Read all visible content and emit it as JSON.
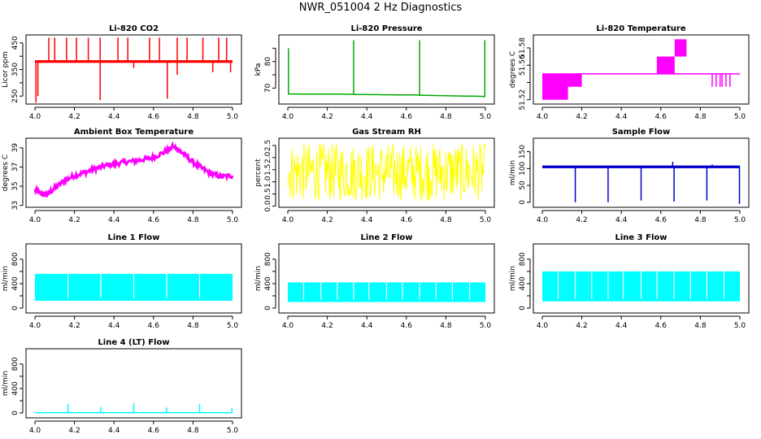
{
  "figure": {
    "title": "NWR_051004  2 Hz Diagnostics"
  },
  "chart_data": [
    {
      "id": "co2",
      "type": "line",
      "title": "Li-820 CO2",
      "ylabel": "Licor ppm",
      "color": "#ff0000",
      "xlim": [
        4.0,
        5.0
      ],
      "ylim": [
        220,
        480
      ],
      "xticks": [
        4.0,
        4.2,
        4.4,
        4.6,
        4.8,
        5.0
      ],
      "yticks": [
        250,
        300,
        350,
        400,
        450
      ],
      "yticklabels": [
        "250",
        "",
        "350",
        "",
        "450"
      ],
      "baseline": 380,
      "band": [
        375,
        385
      ],
      "spikes_up": [
        [
          4.07,
          470
        ],
        [
          4.1,
          470
        ],
        [
          4.16,
          470
        ],
        [
          4.21,
          470
        ],
        [
          4.27,
          470
        ],
        [
          4.33,
          470
        ],
        [
          4.42,
          470
        ],
        [
          4.47,
          470
        ],
        [
          4.58,
          470
        ],
        [
          4.63,
          470
        ],
        [
          4.72,
          470
        ],
        [
          4.77,
          470
        ],
        [
          4.85,
          470
        ],
        [
          4.93,
          470
        ],
        [
          4.97,
          470
        ]
      ],
      "spikes_down": [
        [
          4.005,
          225
        ],
        [
          4.015,
          250
        ],
        [
          4.33,
          235
        ],
        [
          4.5,
          355
        ],
        [
          4.67,
          240
        ],
        [
          4.72,
          330
        ],
        [
          4.9,
          340
        ],
        [
          4.99,
          340
        ]
      ]
    },
    {
      "id": "pressure",
      "type": "line",
      "title": "Li-820 Pressure",
      "ylabel": "kPa",
      "color": "#00aa00",
      "xlim": [
        4.0,
        5.0
      ],
      "ylim": [
        64,
        90
      ],
      "xticks": [
        4.0,
        4.2,
        4.4,
        4.6,
        4.8,
        5.0
      ],
      "yticks": [
        70,
        75,
        80,
        85
      ],
      "yticklabels": [
        "70",
        "",
        "80",
        ""
      ],
      "series": [
        [
          4.0,
          67.8
        ],
        [
          4.33,
          67.7
        ],
        [
          4.34,
          67.6
        ],
        [
          4.66,
          67.4
        ],
        [
          4.67,
          67.3
        ],
        [
          4.98,
          66.9
        ],
        [
          5.0,
          66.8
        ]
      ],
      "spikes_up": [
        [
          4.003,
          85
        ],
        [
          4.333,
          88
        ],
        [
          4.667,
          88
        ],
        [
          4.997,
          88
        ]
      ]
    },
    {
      "id": "licor_temp",
      "type": "step",
      "title": "Li-820 Temperature",
      "ylabel": "degrees C",
      "color": "#ff00ff",
      "xlim": [
        4.0,
        5.0
      ],
      "ylim": [
        51.515,
        51.595
      ],
      "xticks": [
        4.0,
        4.2,
        4.4,
        4.6,
        4.8,
        5.0
      ],
      "yticks": [
        51.52,
        51.54,
        51.56,
        51.58
      ],
      "yticklabels": [
        "51.52",
        "",
        "51.56",
        "51.58"
      ],
      "baseline": 51.55,
      "blocks": [
        [
          4.0,
          4.13,
          51.52,
          51.55
        ],
        [
          4.13,
          4.2,
          51.535,
          51.55
        ],
        [
          4.58,
          4.67,
          51.55,
          51.57
        ],
        [
          4.67,
          4.73,
          51.57,
          51.59
        ]
      ],
      "spikes_down": [
        [
          4.86,
          51.535
        ],
        [
          4.88,
          51.535
        ],
        [
          4.9,
          51.535
        ],
        [
          4.91,
          51.535
        ],
        [
          4.93,
          51.535
        ],
        [
          4.95,
          51.535
        ]
      ]
    },
    {
      "id": "ambient_temp",
      "type": "line",
      "title": "Ambient Box Temperature",
      "ylabel": "degrees C",
      "color": "#ff00ff",
      "xlim": [
        4.0,
        5.0
      ],
      "ylim": [
        32.8,
        40
      ],
      "xticks": [
        4.0,
        4.2,
        4.4,
        4.6,
        4.8,
        5.0
      ],
      "yticks": [
        33,
        35,
        37,
        39
      ],
      "yticklabels": [
        "33",
        "35",
        "37",
        "39"
      ],
      "series": [
        [
          4.0,
          34.6
        ],
        [
          4.03,
          34.2
        ],
        [
          4.06,
          34.1
        ],
        [
          4.1,
          34.8
        ],
        [
          4.15,
          35.6
        ],
        [
          4.2,
          36.1
        ],
        [
          4.25,
          36.4
        ],
        [
          4.3,
          36.8
        ],
        [
          4.35,
          37.1
        ],
        [
          4.4,
          37.3
        ],
        [
          4.45,
          37.5
        ],
        [
          4.5,
          37.6
        ],
        [
          4.55,
          37.8
        ],
        [
          4.6,
          38.0
        ],
        [
          4.65,
          38.5
        ],
        [
          4.7,
          39.1
        ],
        [
          4.72,
          38.9
        ],
        [
          4.75,
          38.4
        ],
        [
          4.8,
          37.5
        ],
        [
          4.85,
          36.8
        ],
        [
          4.9,
          36.2
        ],
        [
          4.95,
          36.0
        ],
        [
          5.0,
          36.1
        ]
      ]
    },
    {
      "id": "rh",
      "type": "line",
      "title": "Gas Stream RH",
      "ylabel": "percent",
      "color": "#ffff00",
      "xlim": [
        4.0,
        5.0
      ],
      "ylim": [
        -0.05,
        2.8
      ],
      "xticks": [
        4.0,
        4.2,
        4.4,
        4.6,
        4.8,
        5.0
      ],
      "yticks": [
        0.0,
        0.5,
        1.0,
        1.5,
        2.0,
        2.5
      ],
      "yticklabels": [
        "0.0",
        "0.5",
        "1.0",
        "1.5",
        "2.0",
        "2.5"
      ],
      "band": [
        0.2,
        2.6
      ],
      "center": 1.3
    },
    {
      "id": "sample_flow",
      "type": "line",
      "title": "Sample Flow",
      "ylabel": "ml/min",
      "color": "#0000cc",
      "xlim": [
        4.0,
        5.0
      ],
      "ylim": [
        -15,
        190
      ],
      "xticks": [
        4.0,
        4.2,
        4.4,
        4.6,
        4.8,
        5.0
      ],
      "yticks": [
        0,
        50,
        100,
        150
      ],
      "yticklabels": [
        "0",
        "50",
        "100",
        "150"
      ],
      "baseline": 105,
      "band": [
        101,
        109
      ],
      "spikes_down": [
        [
          4.167,
          0
        ],
        [
          4.333,
          0
        ],
        [
          4.5,
          5
        ],
        [
          4.667,
          2
        ],
        [
          4.833,
          5
        ],
        [
          4.998,
          -5
        ]
      ],
      "spikes_up": [
        [
          4.66,
          120
        ],
        [
          4.86,
          112
        ]
      ]
    },
    {
      "id": "line1",
      "type": "band",
      "title": "Line 1 Flow",
      "ylabel": "ml/min",
      "color": "#00ffff",
      "xlim": [
        4.0,
        5.0
      ],
      "ylim": [
        -80,
        1050
      ],
      "xticks": [
        4.0,
        4.2,
        4.4,
        4.6,
        4.8,
        5.0
      ],
      "yticks": [
        0,
        200,
        400,
        600,
        800
      ],
      "yticklabels": [
        "0",
        "",
        "400",
        "",
        "800"
      ],
      "band": [
        120,
        560
      ],
      "gaps": [
        4.167,
        4.333,
        4.5,
        4.667,
        4.833
      ]
    },
    {
      "id": "line2",
      "type": "band",
      "title": "Line 2 Flow",
      "ylabel": "ml/min",
      "color": "#00ffff",
      "xlim": [
        4.0,
        5.0
      ],
      "ylim": [
        -80,
        1050
      ],
      "xticks": [
        4.0,
        4.2,
        4.4,
        4.6,
        4.8,
        5.0
      ],
      "yticks": [
        0,
        200,
        400,
        600,
        800
      ],
      "yticklabels": [
        "0",
        "",
        "400",
        "",
        "800"
      ],
      "band": [
        100,
        420
      ],
      "gaps": [
        4.08,
        4.167,
        4.25,
        4.333,
        4.41,
        4.5,
        4.58,
        4.667,
        4.75,
        4.833,
        4.92
      ]
    },
    {
      "id": "line3",
      "type": "band",
      "title": "Line 3 Flow",
      "ylabel": "ml/min",
      "color": "#00ffff",
      "xlim": [
        4.0,
        5.0
      ],
      "ylim": [
        -80,
        1050
      ],
      "xticks": [
        4.0,
        4.2,
        4.4,
        4.6,
        4.8,
        5.0
      ],
      "yticks": [
        0,
        200,
        400,
        600,
        800
      ],
      "yticklabels": [
        "0",
        "",
        "400",
        "",
        "800"
      ],
      "band": [
        110,
        600
      ],
      "gaps": [
        4.08,
        4.167,
        4.25,
        4.333,
        4.41,
        4.5,
        4.58,
        4.667,
        4.75,
        4.833,
        4.92
      ]
    },
    {
      "id": "line4",
      "type": "line",
      "title": "Line 4 (LT) Flow",
      "ylabel": "ml/min",
      "color": "#00ffff",
      "xlim": [
        4.0,
        5.0
      ],
      "ylim": [
        -80,
        1050
      ],
      "xticks": [
        4.0,
        4.2,
        4.4,
        4.6,
        4.8,
        5.0
      ],
      "yticks": [
        0,
        200,
        400,
        600,
        800
      ],
      "yticklabels": [
        "0",
        "",
        "400",
        "",
        "800"
      ],
      "baseline": 5,
      "spikes_up": [
        [
          4.167,
          150
        ],
        [
          4.333,
          100
        ],
        [
          4.5,
          160
        ],
        [
          4.667,
          90
        ],
        [
          4.833,
          150
        ],
        [
          4.997,
          80
        ]
      ]
    }
  ]
}
